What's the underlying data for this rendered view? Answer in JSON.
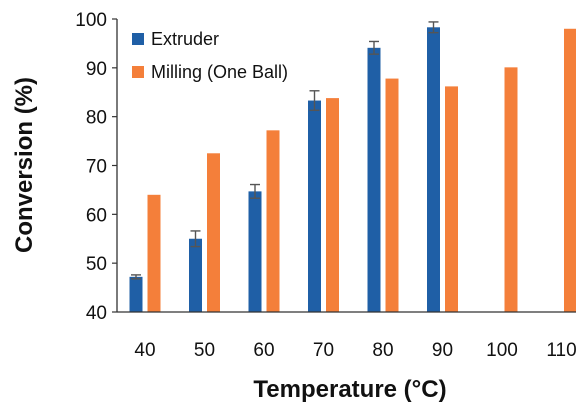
{
  "chart_data": {
    "type": "bar",
    "title": "",
    "xlabel": "Temperature (°C)",
    "ylabel": "Conversion (%)",
    "ylim": [
      40,
      100
    ],
    "yticks": [
      40,
      50,
      60,
      70,
      80,
      90,
      100
    ],
    "categories": [
      "40",
      "50",
      "60",
      "70",
      "80",
      "90",
      "100",
      "110"
    ],
    "grid": false,
    "legend_position": "top-left",
    "series": [
      {
        "name": "Extruder",
        "color": "#1f5fa6",
        "values": [
          47.2,
          55.0,
          64.7,
          83.3,
          94.1,
          98.3,
          null,
          null
        ],
        "errors": [
          0.4,
          1.6,
          1.4,
          2.0,
          1.3,
          1.1,
          null,
          null
        ]
      },
      {
        "name": "Milling (One Ball)",
        "color": "#f47f3a",
        "values": [
          64.0,
          72.5,
          77.2,
          83.8,
          87.8,
          86.2,
          90.1,
          98.0
        ],
        "errors": [
          null,
          null,
          null,
          null,
          null,
          null,
          null,
          null
        ]
      }
    ]
  }
}
